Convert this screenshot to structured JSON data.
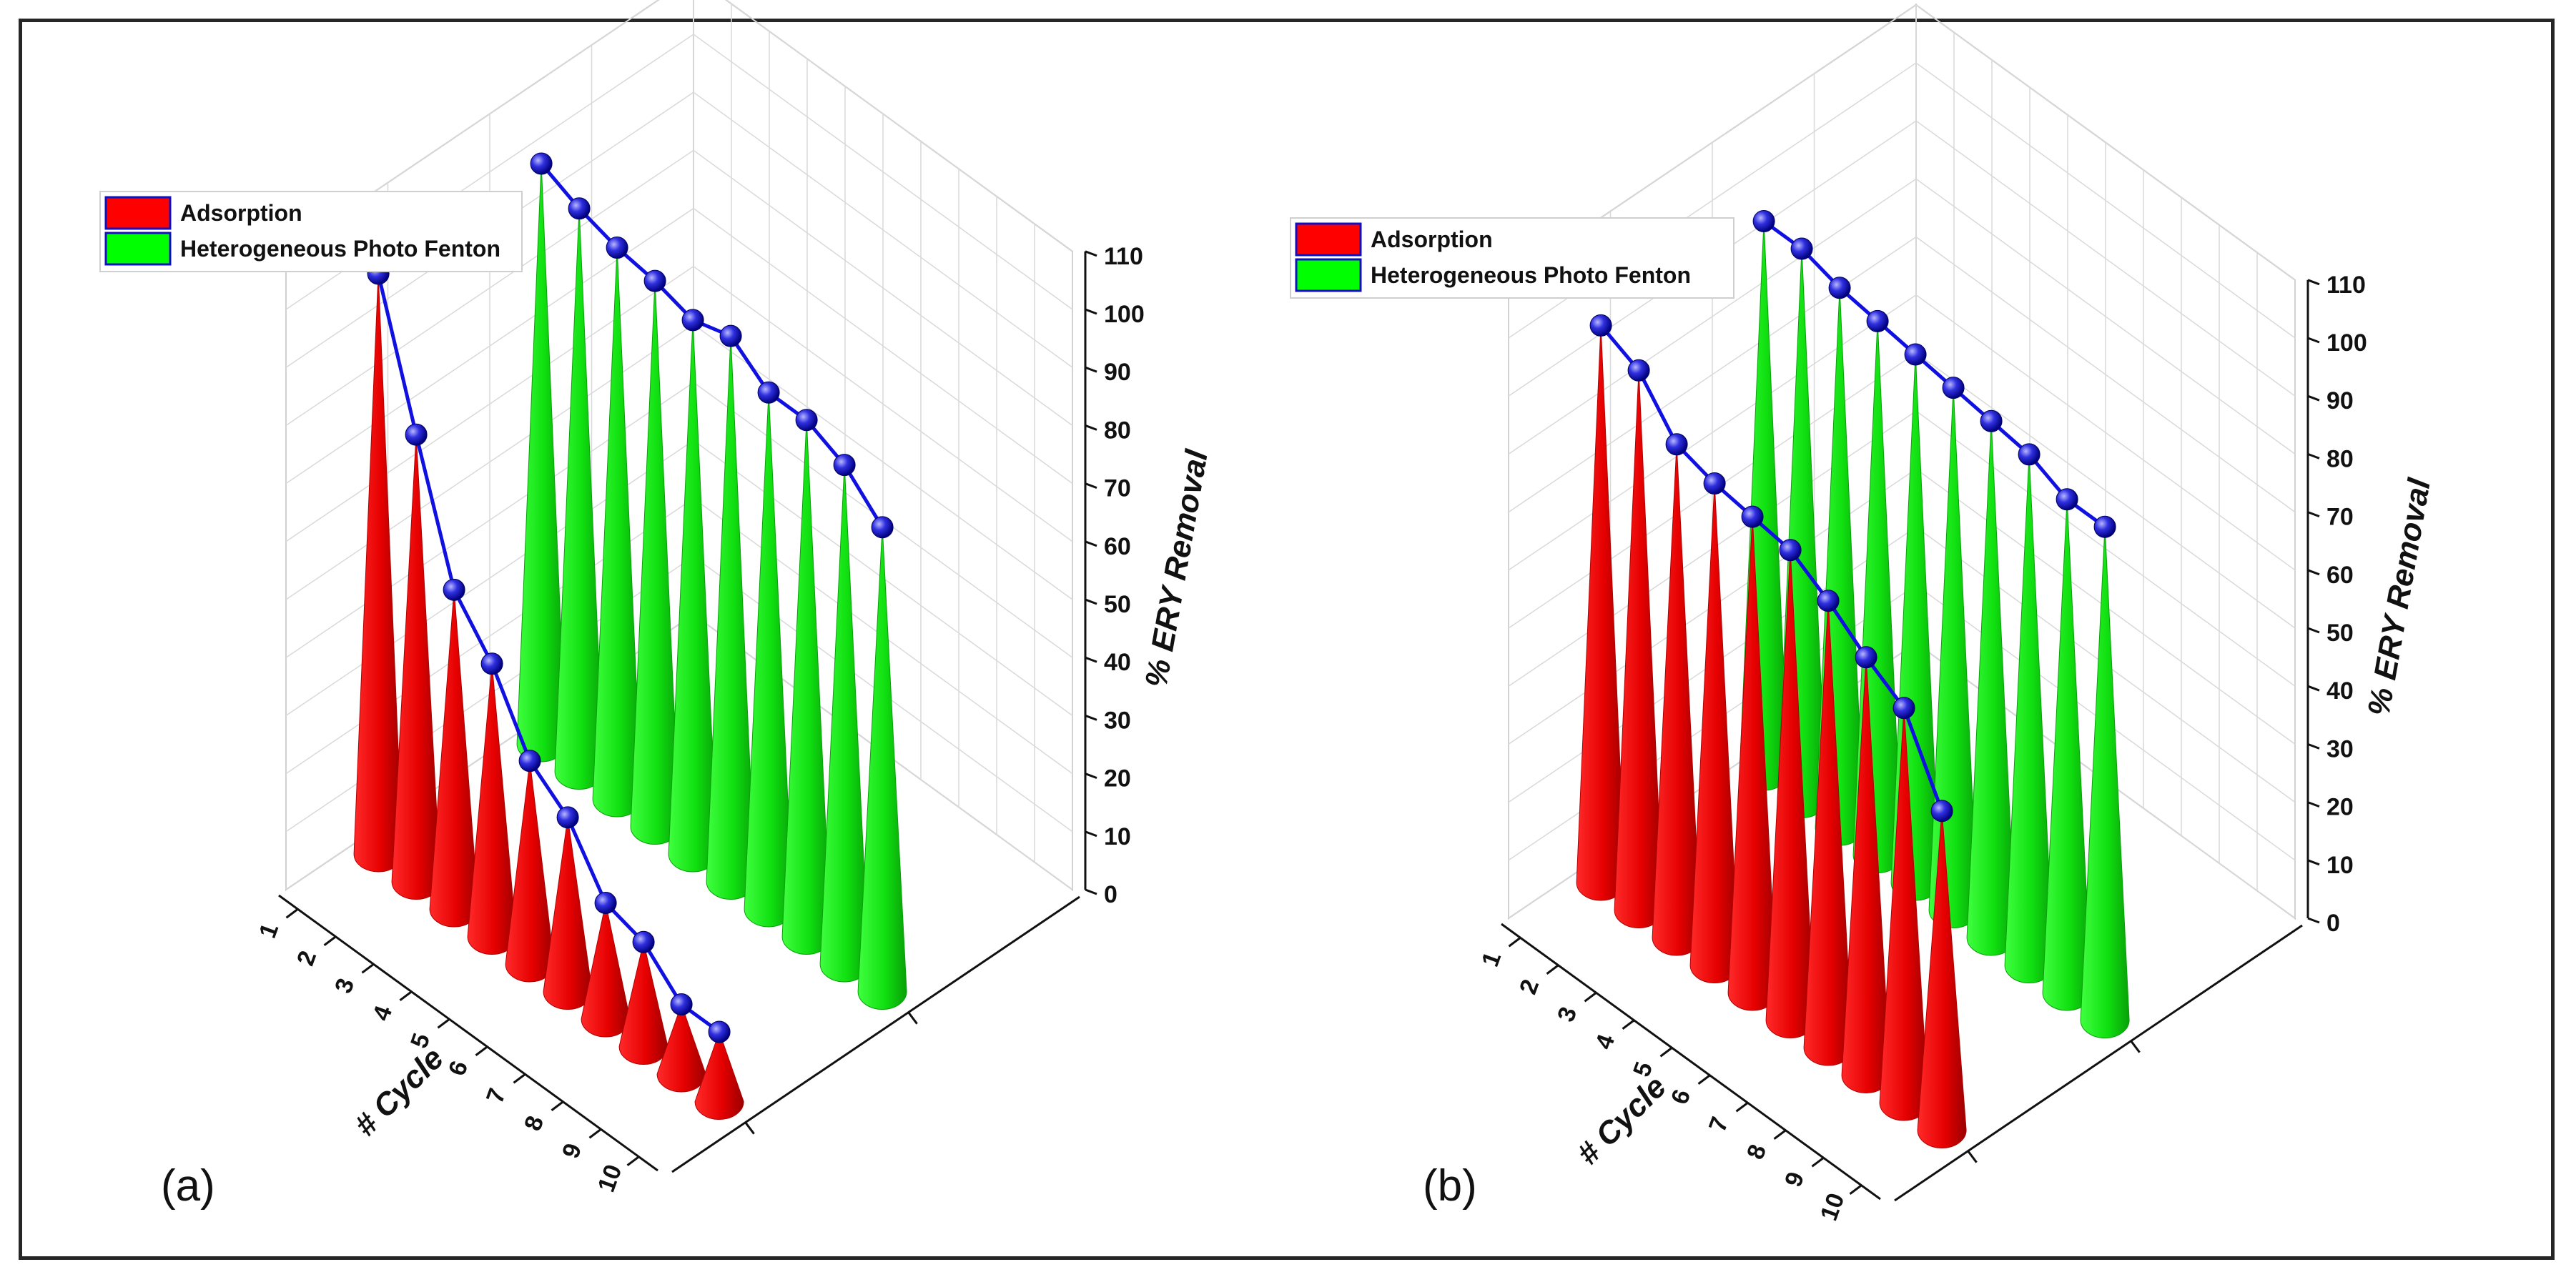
{
  "chart_data": [
    {
      "type": "3d-cone",
      "panel_label": "(a)",
      "xlabel": "# Cycle",
      "zlabel": "% ERY Removal",
      "categories": [
        "1",
        "2",
        "3",
        "4",
        "5",
        "6",
        "7",
        "8",
        "9",
        "10"
      ],
      "zticks": [
        "0",
        "10",
        "20",
        "30",
        "40",
        "50",
        "60",
        "70",
        "80",
        "90",
        "100",
        "110"
      ],
      "zlim": [
        0,
        110
      ],
      "legend_position": "top-left",
      "grid": true,
      "series": [
        {
          "name": "Adsorption",
          "color": "#ff0000",
          "values": [
            100,
            77,
            55,
            47,
            35,
            30,
            20,
            18,
            12,
            12
          ]
        },
        {
          "name": "Heterogeneous Photo Fenton",
          "color": "#00ff00",
          "values": [
            100,
            97,
            95,
            94,
            92,
            94,
            89,
            89,
            86,
            80
          ]
        }
      ],
      "trend_line": {
        "series": "Adsorption",
        "color": "#1010e0"
      },
      "trend_line_2": {
        "series": "Heterogeneous Photo Fenton",
        "color": "#1010e0"
      }
    },
    {
      "type": "3d-cone",
      "panel_label": "(b)",
      "xlabel": "# Cycle",
      "zlabel": "% ERY Removal",
      "categories": [
        "1",
        "2",
        "3",
        "4",
        "5",
        "6",
        "7",
        "8",
        "9",
        "10"
      ],
      "zticks": [
        "0",
        "10",
        "20",
        "30",
        "40",
        "50",
        "60",
        "70",
        "80",
        "90",
        "100",
        "110"
      ],
      "zlim": [
        0,
        110
      ],
      "legend_position": "top-left",
      "grid": true,
      "series": [
        {
          "name": "Adsorption",
          "color": "#ff0000",
          "values": [
            96,
            93,
            85,
            83,
            82,
            81,
            77,
            72,
            68,
            55
          ]
        },
        {
          "name": "Heterogeneous Photo Fenton",
          "color": "#00ff00",
          "values": [
            95,
            95,
            93,
            92,
            91,
            90,
            89,
            88,
            85,
            85
          ]
        }
      ],
      "trend_line": {
        "series": "Adsorption",
        "color": "#1010e0"
      },
      "trend_line_2": {
        "series": "Heterogeneous Photo Fenton",
        "color": "#1010e0"
      }
    }
  ]
}
